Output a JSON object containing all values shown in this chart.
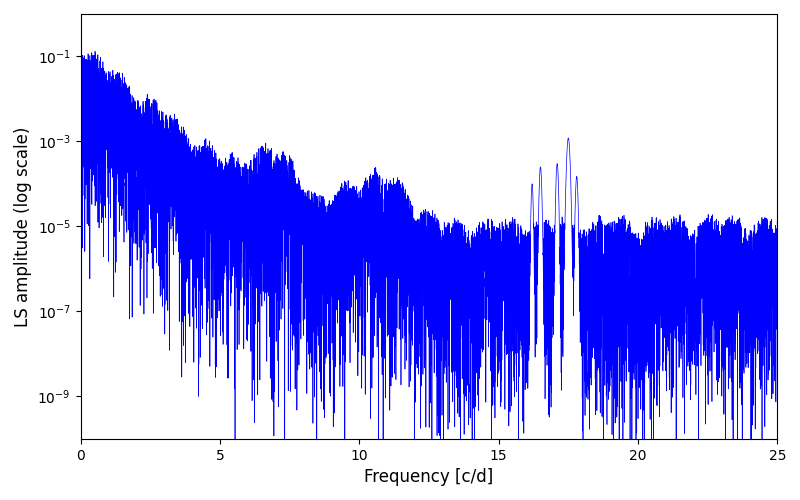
{
  "xlabel": "Frequency [c/d]",
  "ylabel": "LS amplitude (log scale)",
  "line_color": "#0000ff",
  "line_width": 0.5,
  "xlim": [
    0,
    25
  ],
  "ylim": [
    1e-10,
    1.0
  ],
  "yticks": [
    1e-09,
    1e-07,
    1e-05,
    0.001,
    0.1
  ],
  "xticks": [
    0,
    5,
    10,
    15,
    20,
    25
  ],
  "figsize": [
    8.0,
    5.0
  ],
  "dpi": 100,
  "bg_color": "#ffffff",
  "seed": 17,
  "n_points": 8000,
  "freq_max": 25.0
}
